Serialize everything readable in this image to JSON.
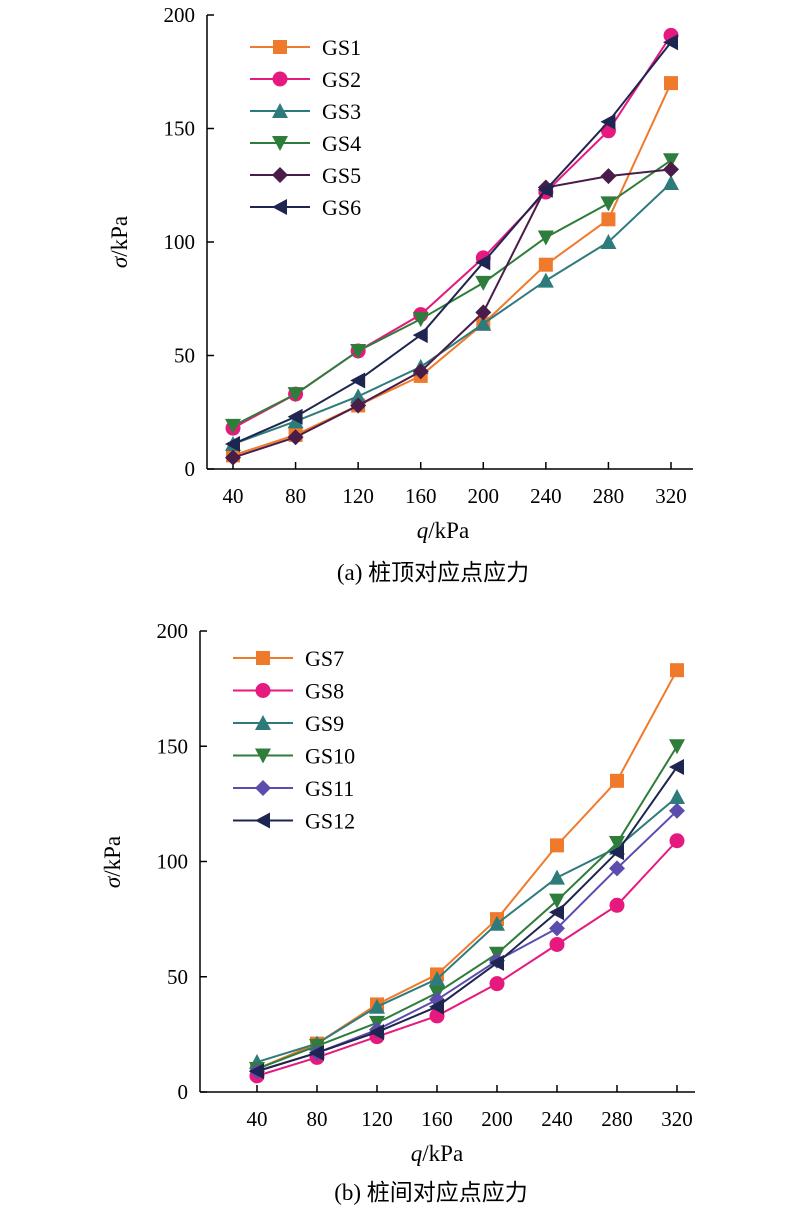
{
  "chart_data": [
    {
      "type": "line",
      "caption": "(a) 桩顶对应点应力",
      "xlabel_var": "q",
      "xlabel_unit": "/kPa",
      "ylabel_var": "σ",
      "ylabel_unit": "/kPa",
      "x": [
        40,
        80,
        120,
        160,
        200,
        240,
        280,
        320
      ],
      "ylim": [
        0,
        200
      ],
      "yticks": [
        0,
        50,
        100,
        150,
        200
      ],
      "legend_position": "top-left",
      "series": [
        {
          "name": "GS1",
          "marker": "square",
          "color": "#F07A2C",
          "values": [
            6,
            15,
            28,
            41,
            64,
            90,
            110,
            170
          ]
        },
        {
          "name": "GS2",
          "marker": "circle",
          "color": "#E6197F",
          "values": [
            18,
            33,
            52,
            68,
            93,
            122,
            149,
            191
          ]
        },
        {
          "name": "GS3",
          "marker": "triangle-up",
          "color": "#2E7B7B",
          "values": [
            11,
            21,
            32,
            45,
            64,
            83,
            100,
            126
          ]
        },
        {
          "name": "GS4",
          "marker": "triangle-down",
          "color": "#2F7D3A",
          "values": [
            19,
            33,
            52,
            66,
            82,
            102,
            117,
            136
          ]
        },
        {
          "name": "GS5",
          "marker": "diamond",
          "color": "#4A1C4A",
          "values": [
            5,
            14,
            28,
            43,
            69,
            124,
            129,
            132
          ]
        },
        {
          "name": "GS6",
          "marker": "triangle-left",
          "color": "#1E2550",
          "values": [
            11,
            23,
            39,
            59,
            91,
            123,
            153,
            188
          ]
        }
      ]
    },
    {
      "type": "line",
      "caption": "(b) 桩间对应点应力",
      "xlabel_var": "q",
      "xlabel_unit": "/kPa",
      "ylabel_var": "σ",
      "ylabel_unit": "/kPa",
      "x": [
        40,
        80,
        120,
        160,
        200,
        240,
        280,
        320
      ],
      "ylim": [
        0,
        200
      ],
      "yticks": [
        0,
        50,
        100,
        150,
        200
      ],
      "legend_position": "top-left",
      "series": [
        {
          "name": "GS7",
          "marker": "square",
          "color": "#F07A2C",
          "values": [
            10,
            21,
            38,
            51,
            75,
            107,
            135,
            183
          ]
        },
        {
          "name": "GS8",
          "marker": "circle",
          "color": "#E6197F",
          "values": [
            7,
            15,
            24,
            33,
            47,
            64,
            81,
            109
          ]
        },
        {
          "name": "GS9",
          "marker": "triangle-up",
          "color": "#2E7B7B",
          "values": [
            13,
            21,
            37,
            49,
            73,
            93,
            106,
            128
          ]
        },
        {
          "name": "GS10",
          "marker": "triangle-down",
          "color": "#2F7D3A",
          "values": [
            10,
            20,
            30,
            43,
            60,
            83,
            108,
            150
          ]
        },
        {
          "name": "GS11",
          "marker": "diamond",
          "color": "#5B4DAE",
          "values": [
            9,
            17,
            27,
            40,
            57,
            71,
            97,
            122
          ]
        },
        {
          "name": "GS12",
          "marker": "triangle-left",
          "color": "#1E2550",
          "values": [
            9,
            17,
            26,
            37,
            56,
            78,
            104,
            141
          ]
        }
      ]
    }
  ]
}
